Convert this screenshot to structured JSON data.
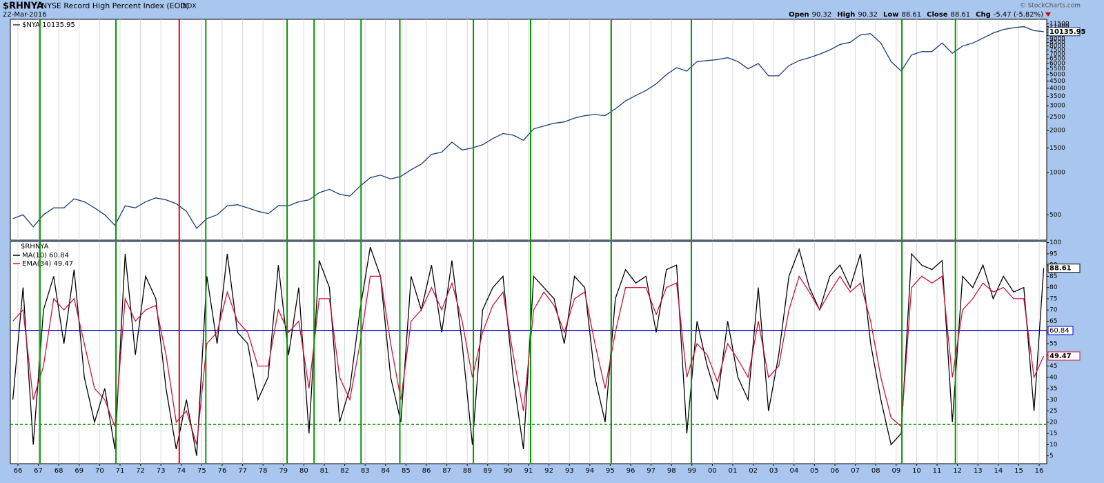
{
  "header": {
    "symbol": "$RHNYA",
    "name": "NYSE Record High Percent Index (EOD)",
    "exchange": "INDX",
    "date": "22-Mar-2016",
    "quote": [
      {
        "label": "Open",
        "value": "90.32"
      },
      {
        "label": "High",
        "value": "90.32"
      },
      {
        "label": "Low",
        "value": "88.61"
      },
      {
        "label": "Close",
        "value": "88.61"
      },
      {
        "label": "Chg",
        "value": "-5.47 (-5.82%)"
      }
    ],
    "watermark": "© StockCharts.com"
  },
  "signal_lines": [
    {
      "value": 1967.08,
      "color": "#009900"
    },
    {
      "value": 1970.8,
      "color": "#009900"
    },
    {
      "value": 1973.9,
      "color": "#e00000"
    },
    {
      "value": 1975.2,
      "color": "#009900"
    },
    {
      "value": 1979.18,
      "color": "#009900"
    },
    {
      "value": 1980.5,
      "color": "#009900"
    },
    {
      "value": 1982.8,
      "color": "#009900"
    },
    {
      "value": 1984.7,
      "color": "#009900"
    },
    {
      "value": 1988.3,
      "color": "#009900"
    },
    {
      "value": 1991.1,
      "color": "#009900"
    },
    {
      "value": 1995.05,
      "color": "#009900"
    },
    {
      "value": 1998.97,
      "color": "#009900"
    },
    {
      "value": 2009.28,
      "color": "#009900"
    },
    {
      "value": 2011.9,
      "color": "#009900"
    }
  ],
  "chart_data": [
    {
      "type": "line",
      "log_scale": true,
      "grid": "x",
      "xlim": [
        1965.63,
        2016.37
      ],
      "ylim": [
        330,
        12400
      ],
      "yticks": [
        500,
        1000,
        1500,
        2000,
        2500,
        3000,
        3500,
        4000,
        4500,
        5000,
        5500,
        6000,
        6500,
        7000,
        7500,
        8000,
        8500,
        9000,
        9500,
        10000,
        10500,
        11000,
        11500
      ],
      "x": [
        1965.75,
        1966.25,
        1966.75,
        1967.25,
        1967.75,
        1968.25,
        1968.75,
        1969.25,
        1969.75,
        1970.25,
        1970.75,
        1971.25,
        1971.75,
        1972.25,
        1972.75,
        1973.25,
        1973.75,
        1974.25,
        1974.75,
        1975.25,
        1975.75,
        1976.25,
        1976.75,
        1977.25,
        1977.75,
        1978.25,
        1978.75,
        1979.25,
        1979.75,
        1980.25,
        1980.75,
        1981.25,
        1981.75,
        1982.25,
        1982.75,
        1983.25,
        1983.75,
        1984.25,
        1984.75,
        1985.25,
        1985.75,
        1986.25,
        1986.75,
        1987.25,
        1987.75,
        1988.25,
        1988.75,
        1989.25,
        1989.75,
        1990.25,
        1990.75,
        1991.25,
        1991.75,
        1992.25,
        1992.75,
        1993.25,
        1993.75,
        1994.25,
        1994.75,
        1995.25,
        1995.75,
        1996.25,
        1996.75,
        1997.25,
        1997.75,
        1998.25,
        1998.75,
        1999.25,
        1999.75,
        2000.25,
        2000.75,
        2001.25,
        2001.75,
        2002.25,
        2002.75,
        2003.25,
        2003.75,
        2004.25,
        2004.75,
        2005.25,
        2005.75,
        2006.25,
        2006.75,
        2007.25,
        2007.75,
        2008.25,
        2008.75,
        2009.25,
        2009.75,
        2010.25,
        2010.75,
        2011.25,
        2011.75,
        2012.25,
        2012.75,
        2013.25,
        2013.75,
        2014.25,
        2014.75,
        2015.25,
        2015.75,
        2016.22
      ],
      "series": [
        {
          "name": "$NYA 10135.95",
          "color": "#1a3a7a",
          "end_label": "10135.95",
          "values": [
            470,
            500,
            410,
            500,
            560,
            560,
            650,
            620,
            560,
            500,
            420,
            580,
            560,
            620,
            660,
            640,
            600,
            530,
            400,
            470,
            500,
            580,
            590,
            560,
            530,
            510,
            580,
            580,
            620,
            640,
            720,
            760,
            700,
            680,
            800,
            920,
            960,
            900,
            940,
            1050,
            1150,
            1350,
            1400,
            1650,
            1450,
            1500,
            1580,
            1750,
            1900,
            1850,
            1700,
            2050,
            2150,
            2250,
            2300,
            2450,
            2550,
            2600,
            2550,
            2850,
            3250,
            3550,
            3850,
            4300,
            5000,
            5600,
            5300,
            6200,
            6300,
            6400,
            6600,
            6200,
            5500,
            6000,
            4900,
            4900,
            5800,
            6300,
            6600,
            7000,
            7500,
            8200,
            8500,
            9600,
            9800,
            8400,
            6200,
            5300,
            6900,
            7300,
            7300,
            8400,
            7100,
            8000,
            8400,
            9100,
            9900,
            10500,
            10800,
            11000,
            10300,
            10135.95
          ]
        }
      ]
    },
    {
      "type": "line",
      "title": "$RHNYA",
      "grid": "x",
      "xlim": [
        1965.63,
        2016.37
      ],
      "ylim": [
        1.5,
        100.5
      ],
      "yticks": [
        5,
        10,
        15,
        20,
        25,
        30,
        35,
        40,
        45,
        50,
        55,
        60,
        65,
        70,
        75,
        80,
        85,
        90,
        95,
        100
      ],
      "xticks": [
        {
          "value": 1966,
          "label": "66"
        },
        {
          "value": 1967,
          "label": "67"
        },
        {
          "value": 1968,
          "label": "68"
        },
        {
          "value": 1969,
          "label": "69"
        },
        {
          "value": 1970,
          "label": "70"
        },
        {
          "value": 1971,
          "label": "71"
        },
        {
          "value": 1972,
          "label": "72"
        },
        {
          "value": 1973,
          "label": "73"
        },
        {
          "value": 1974,
          "label": "74"
        },
        {
          "value": 1975,
          "label": "75"
        },
        {
          "value": 1976,
          "label": "76"
        },
        {
          "value": 1977,
          "label": "77"
        },
        {
          "value": 1978,
          "label": "78"
        },
        {
          "value": 1979,
          "label": "79"
        },
        {
          "value": 1980,
          "label": "80"
        },
        {
          "value": 1981,
          "label": "81"
        },
        {
          "value": 1982,
          "label": "82"
        },
        {
          "value": 1983,
          "label": "83"
        },
        {
          "value": 1984,
          "label": "84"
        },
        {
          "value": 1985,
          "label": "85"
        },
        {
          "value": 1986,
          "label": "86"
        },
        {
          "value": 1987,
          "label": "87"
        },
        {
          "value": 1988,
          "label": "88"
        },
        {
          "value": 1989,
          "label": "89"
        },
        {
          "value": 1990,
          "label": "90"
        },
        {
          "value": 1991,
          "label": "91"
        },
        {
          "value": 1992,
          "label": "92"
        },
        {
          "value": 1993,
          "label": "93"
        },
        {
          "value": 1994,
          "label": "94"
        },
        {
          "value": 1995,
          "label": "95"
        },
        {
          "value": 1996,
          "label": "96"
        },
        {
          "value": 1997,
          "label": "97"
        },
        {
          "value": 1998,
          "label": "98"
        },
        {
          "value": 1999,
          "label": "99"
        },
        {
          "value": 2000,
          "label": "00"
        },
        {
          "value": 2001,
          "label": "01"
        },
        {
          "value": 2002,
          "label": "02"
        },
        {
          "value": 2003,
          "label": "03"
        },
        {
          "value": 2004,
          "label": "04"
        },
        {
          "value": 2005,
          "label": "05"
        },
        {
          "value": 2006,
          "label": "06"
        },
        {
          "value": 2007,
          "label": "07"
        },
        {
          "value": 2008,
          "label": "08"
        },
        {
          "value": 2009,
          "label": "09"
        },
        {
          "value": 2010,
          "label": "10"
        },
        {
          "value": 2011,
          "label": "11"
        },
        {
          "value": 2012,
          "label": "12"
        },
        {
          "value": 2013,
          "label": "13"
        },
        {
          "value": 2014,
          "label": "14"
        },
        {
          "value": 2015,
          "label": "15"
        },
        {
          "value": 2016,
          "label": "16"
        }
      ],
      "x": [
        1965.75,
        1966.25,
        1966.75,
        1967.25,
        1967.75,
        1968.25,
        1968.75,
        1969.25,
        1969.75,
        1970.25,
        1970.75,
        1971.25,
        1971.75,
        1972.25,
        1972.75,
        1973.25,
        1973.75,
        1974.25,
        1974.75,
        1975.25,
        1975.75,
        1976.25,
        1976.75,
        1977.25,
        1977.75,
        1978.25,
        1978.75,
        1979.25,
        1979.75,
        1980.25,
        1980.75,
        1981.25,
        1981.75,
        1982.25,
        1982.75,
        1983.25,
        1983.75,
        1984.25,
        1984.75,
        1985.25,
        1985.75,
        1986.25,
        1986.75,
        1987.25,
        1987.75,
        1988.25,
        1988.75,
        1989.25,
        1989.75,
        1990.25,
        1990.75,
        1991.25,
        1991.75,
        1992.25,
        1992.75,
        1993.25,
        1993.75,
        1994.25,
        1994.75,
        1995.25,
        1995.75,
        1996.25,
        1996.75,
        1997.25,
        1997.75,
        1998.25,
        1998.75,
        1999.25,
        1999.75,
        2000.25,
        2000.75,
        2001.25,
        2001.75,
        2002.25,
        2002.75,
        2003.25,
        2003.75,
        2004.25,
        2004.75,
        2005.25,
        2005.75,
        2006.25,
        2006.75,
        2007.25,
        2007.75,
        2008.25,
        2008.75,
        2009.25,
        2009.75,
        2010.25,
        2010.75,
        2011.25,
        2011.75,
        2012.25,
        2012.75,
        2013.25,
        2013.75,
        2014.25,
        2014.75,
        2015.25,
        2015.75,
        2016.22
      ],
      "hlines": [
        {
          "value": 60.84,
          "color": "#0000cc",
          "label": "60.84"
        },
        {
          "value": 19,
          "color": "#009900",
          "dashed": true
        }
      ],
      "series": [
        {
          "name": "MA(10) 60.84",
          "color": "#000000",
          "end_label": "88.61",
          "values": [
            30,
            80,
            10,
            70,
            85,
            55,
            88,
            40,
            20,
            35,
            8,
            95,
            50,
            85,
            75,
            35,
            8,
            30,
            5,
            85,
            55,
            95,
            60,
            55,
            30,
            40,
            90,
            50,
            80,
            15,
            92,
            80,
            20,
            35,
            70,
            98,
            85,
            40,
            20,
            85,
            70,
            90,
            60,
            92,
            55,
            10,
            70,
            80,
            85,
            40,
            8,
            85,
            80,
            75,
            55,
            85,
            80,
            40,
            20,
            75,
            88,
            82,
            85,
            60,
            88,
            90,
            15,
            65,
            45,
            30,
            65,
            40,
            30,
            80,
            25,
            50,
            85,
            97,
            80,
            70,
            85,
            90,
            80,
            95,
            55,
            30,
            10,
            15,
            95,
            90,
            88,
            92,
            20,
            85,
            80,
            90,
            75,
            85,
            78,
            80,
            25,
            88.61
          ]
        },
        {
          "name": "EMA(34) 49.47",
          "color": "#d0103a",
          "end_label": "49.47",
          "values": [
            65,
            70,
            30,
            45,
            75,
            70,
            75,
            55,
            35,
            30,
            18,
            75,
            65,
            70,
            72,
            50,
            20,
            25,
            10,
            55,
            60,
            78,
            65,
            60,
            45,
            45,
            70,
            60,
            65,
            35,
            75,
            75,
            40,
            30,
            55,
            85,
            85,
            55,
            30,
            65,
            70,
            80,
            70,
            82,
            65,
            40,
            60,
            72,
            78,
            50,
            25,
            70,
            78,
            72,
            60,
            75,
            78,
            55,
            35,
            60,
            80,
            80,
            80,
            68,
            80,
            82,
            40,
            55,
            50,
            38,
            55,
            48,
            40,
            65,
            40,
            45,
            70,
            85,
            78,
            70,
            78,
            85,
            78,
            82,
            65,
            40,
            22,
            18,
            80,
            85,
            82,
            85,
            40,
            70,
            75,
            82,
            78,
            80,
            75,
            75,
            40,
            49.47
          ]
        }
      ]
    }
  ]
}
